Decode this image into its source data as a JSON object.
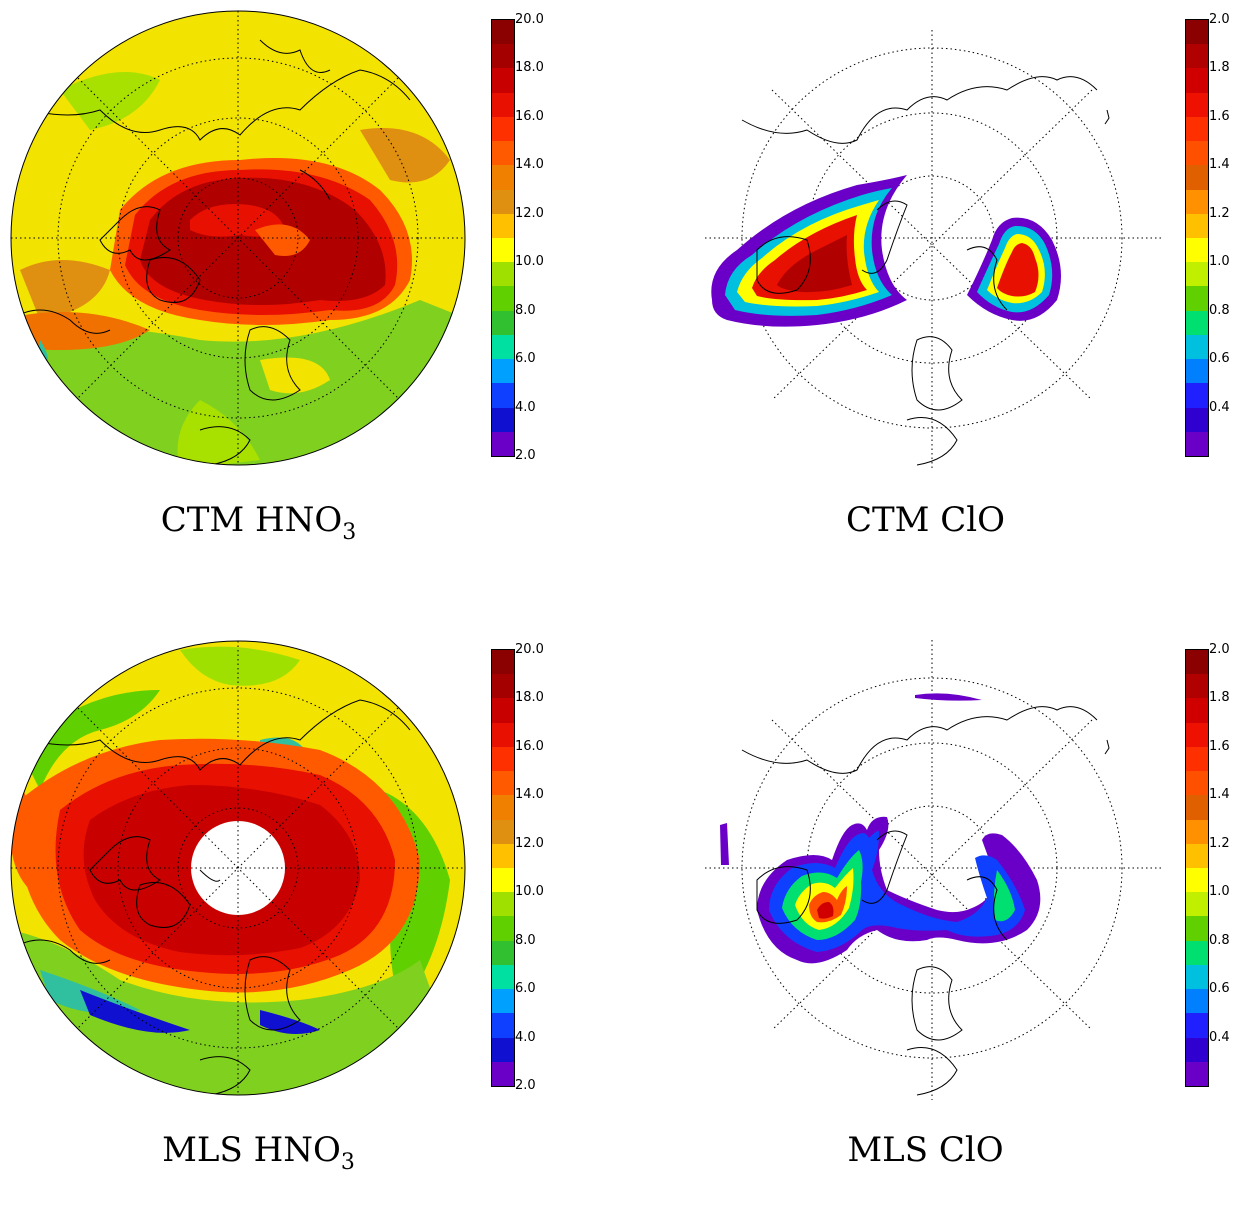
{
  "panels": [
    {
      "id": "ctm-hno3",
      "caption_main": "CTM HNO",
      "caption_sub": "3",
      "colorbar": {
        "ticks": [
          "20.0",
          "18.0",
          "16.0",
          "14.0",
          "12.0",
          "10.0",
          "8.0",
          "6.0",
          "4.0",
          "2.0"
        ],
        "colors": [
          "#8b0000",
          "#a50000",
          "#c80000",
          "#e81000",
          "#ff3000",
          "#ff5a00",
          "#f08000",
          "#e09010",
          "#ffc000",
          "#ffff00",
          "#a0e000",
          "#60d000",
          "#30c030",
          "#00e0a0",
          "#00a0ff",
          "#1040ff",
          "#1010d0",
          "#6a00c8"
        ]
      }
    },
    {
      "id": "ctm-clo",
      "caption_main": "CTM ClO",
      "caption_sub": "",
      "colorbar": {
        "ticks": [
          "2.0",
          "1.8",
          "1.6",
          "1.4",
          "1.2",
          "1.0",
          "0.8",
          "0.6",
          "0.4"
        ],
        "colors": [
          "#8b0000",
          "#b00000",
          "#d00000",
          "#ee1000",
          "#ff3000",
          "#ff5000",
          "#e06000",
          "#ff9000",
          "#ffc000",
          "#ffff00",
          "#c0f000",
          "#60d000",
          "#00e070",
          "#00c0e0",
          "#0080ff",
          "#2020ff",
          "#3000d0",
          "#6a00c8"
        ]
      }
    },
    {
      "id": "mls-hno3",
      "caption_main": "MLS HNO",
      "caption_sub": "3",
      "colorbar": {
        "ticks": [
          "20.0",
          "18.0",
          "16.0",
          "14.0",
          "12.0",
          "10.0",
          "8.0",
          "6.0",
          "4.0",
          "2.0"
        ],
        "colors": [
          "#8b0000",
          "#a50000",
          "#c80000",
          "#e81000",
          "#ff3000",
          "#ff5a00",
          "#f08000",
          "#e09010",
          "#ffc000",
          "#ffff00",
          "#a0e000",
          "#60d000",
          "#30c030",
          "#00e0a0",
          "#00a0ff",
          "#1040ff",
          "#1010d0",
          "#6a00c8"
        ]
      }
    },
    {
      "id": "mls-clo",
      "caption_main": "MLS ClO",
      "caption_sub": "",
      "colorbar": {
        "ticks": [
          "2.0",
          "1.8",
          "1.6",
          "1.4",
          "1.2",
          "1.0",
          "0.8",
          "0.6",
          "0.4"
        ],
        "colors": [
          "#8b0000",
          "#b00000",
          "#d00000",
          "#ee1000",
          "#ff3000",
          "#ff5000",
          "#e06000",
          "#ff9000",
          "#ffc000",
          "#ffff00",
          "#c0f000",
          "#60d000",
          "#00e070",
          "#00c0e0",
          "#0080ff",
          "#2020ff",
          "#3000d0",
          "#6a00c8"
        ]
      }
    }
  ]
}
